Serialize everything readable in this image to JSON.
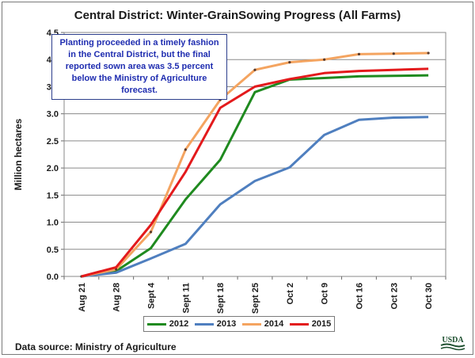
{
  "chart_data": {
    "type": "line",
    "title": "Central District:  Winter-GrainSowing Progress (All Farms)",
    "ylabel": "Million hectares",
    "xlabel": "",
    "ylim": [
      0,
      4.5
    ],
    "yticks": [
      "0.0",
      "0.5",
      "1.0",
      "1.5",
      "2.0",
      "2.5",
      "3.0",
      "3.5",
      "4.0",
      "4.5"
    ],
    "categories": [
      "Aug 21",
      "Aug 28",
      "Sept 4",
      "Sept 11",
      "Sept 18",
      "Sept 25",
      "Oct 2",
      "Oct 9",
      "Oct 16",
      "Oct 23",
      "Oct 30"
    ],
    "grid": true,
    "legend_position": "bottom",
    "series": [
      {
        "name": "2012",
        "color": "#1f8a1f",
        "marker": false,
        "values": [
          0.0,
          0.1,
          0.52,
          1.42,
          2.15,
          3.4,
          3.63,
          3.66,
          3.69,
          3.7,
          3.71
        ]
      },
      {
        "name": "2013",
        "color": "#4f7fbf",
        "marker": false,
        "values": [
          0.0,
          0.07,
          0.33,
          0.6,
          1.33,
          1.76,
          2.01,
          2.61,
          2.89,
          2.93,
          2.94
        ]
      },
      {
        "name": "2014",
        "color": "#f4a460",
        "marker": true,
        "values": [
          0.0,
          0.13,
          0.82,
          2.34,
          3.26,
          3.81,
          3.95,
          4.0,
          4.1,
          4.11,
          4.12
        ]
      },
      {
        "name": "2015",
        "color": "#e31a1c",
        "marker": false,
        "values": [
          0.0,
          0.17,
          0.95,
          1.93,
          3.11,
          3.5,
          3.64,
          3.75,
          3.79,
          3.81,
          3.83
        ]
      }
    ],
    "annotation": "Planting proceeded in a timely fashion in the Central District, but the final reported sown area was 3.5 percent below the Ministry of Agriculture forecast."
  },
  "footer": {
    "source": "Data source:  Ministry of Agriculture",
    "logo_text": "USDA"
  }
}
